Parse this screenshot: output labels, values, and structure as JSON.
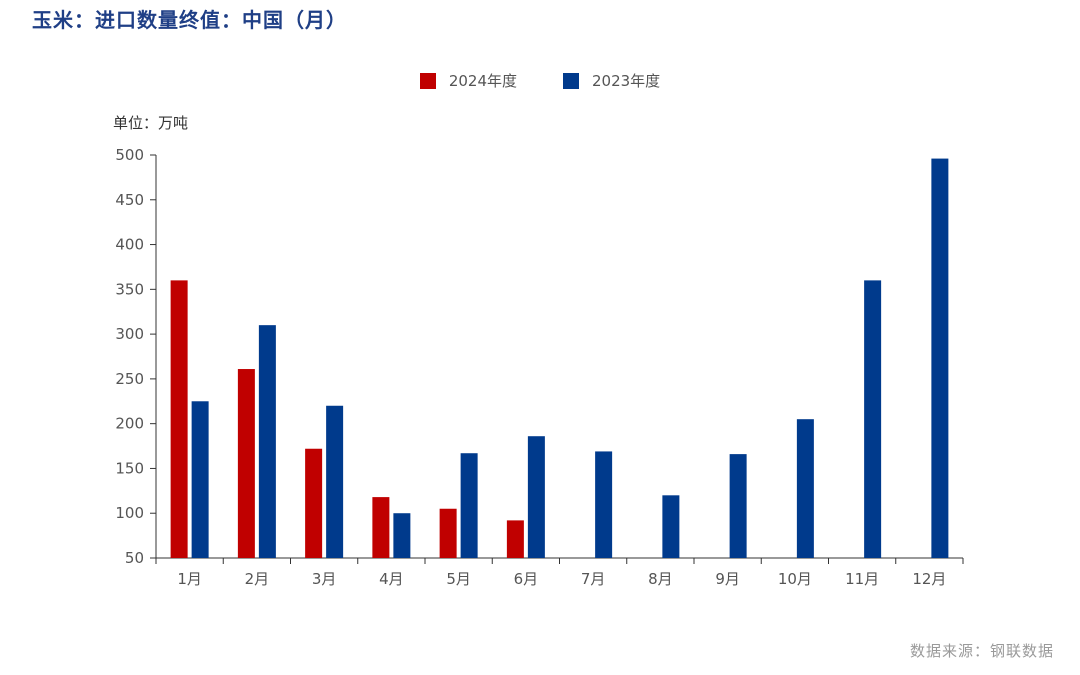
{
  "title": "玉米：进口数量终值：中国（月）",
  "source": "数据来源：钢联数据",
  "unit_label": "单位：万吨",
  "colors": {
    "series_2024": "#c00000",
    "series_2023": "#003a8c",
    "axis": "#333333"
  },
  "chart_data": {
    "type": "bar",
    "categories": [
      "1月",
      "2月",
      "3月",
      "4月",
      "5月",
      "6月",
      "7月",
      "8月",
      "9月",
      "10月",
      "11月",
      "12月"
    ],
    "series": [
      {
        "name": "2024年度",
        "values": [
          360,
          261,
          172,
          118,
          105,
          92,
          null,
          null,
          null,
          null,
          null,
          null
        ]
      },
      {
        "name": "2023年度",
        "values": [
          225,
          310,
          220,
          100,
          167,
          186,
          169,
          120,
          166,
          205,
          360,
          496
        ]
      }
    ],
    "ylim": [
      50,
      500
    ],
    "yticks": [
      50,
      100,
      150,
      200,
      250,
      300,
      350,
      400,
      450,
      500
    ],
    "legend_position": "top-center",
    "grid": false
  }
}
